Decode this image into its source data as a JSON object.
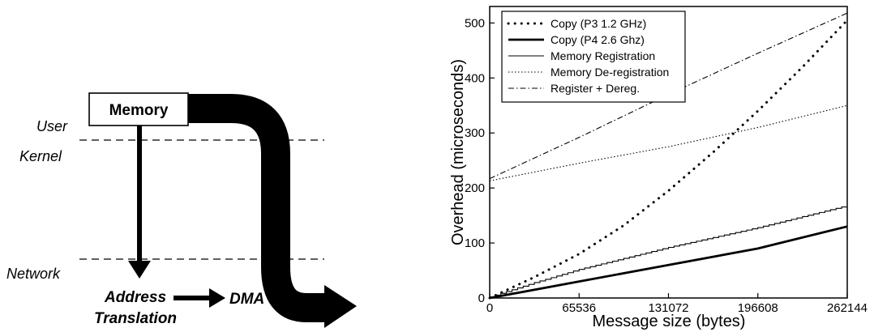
{
  "diagram": {
    "memory_label": "Memory",
    "user_label": "User",
    "kernel_label": "Kernel",
    "network_label": "Network",
    "address_label_line1": "Address",
    "address_label_line2": "Translation",
    "dma_label": "DMA"
  },
  "chart_data": {
    "type": "line",
    "xlabel": "Message size (bytes)",
    "ylabel": "Overhead (microseconds)",
    "xlim": [
      0,
      262144
    ],
    "ylim": [
      0,
      530
    ],
    "xticks": [
      0,
      65536,
      131072,
      196608,
      262144
    ],
    "xtick_labels": [
      "0",
      "65536",
      "131072",
      "196608",
      "262144"
    ],
    "yticks": [
      0,
      100,
      200,
      300,
      400,
      500
    ],
    "ytick_labels": [
      "0",
      "100",
      "200",
      "300",
      "400",
      "500"
    ],
    "legend_position": "top-left",
    "grid": false,
    "series": [
      {
        "name": "Copy (P3 1.2 GHz)",
        "style": "dotted-bold",
        "color": "#000000",
        "x": [
          0,
          32768,
          65536,
          98304,
          131072,
          163840,
          196608,
          229376,
          262144
        ],
        "y": [
          0,
          38,
          80,
          132,
          195,
          265,
          340,
          420,
          505
        ]
      },
      {
        "name": "Copy (P4 2.6 Ghz)",
        "style": "solid-bold",
        "color": "#000000",
        "x": [
          0,
          65536,
          131072,
          196608,
          262144
        ],
        "y": [
          0,
          30,
          60,
          90,
          130
        ]
      },
      {
        "name": "Memory Registration",
        "style": "solid-thin",
        "color": "#000000",
        "x": [
          0,
          32768,
          65536,
          98304,
          131072,
          163840,
          196608,
          229376,
          262144
        ],
        "y": [
          2,
          28,
          52,
          72,
          92,
          110,
          128,
          148,
          168
        ]
      },
      {
        "name": "Memory De-registration",
        "style": "dotted-thin",
        "color": "#000000",
        "x": [
          0,
          65536,
          131072,
          196608,
          262144
        ],
        "y": [
          213,
          245,
          275,
          310,
          350
        ]
      },
      {
        "name": "Register + Dereg.",
        "style": "dashdot",
        "color": "#000000",
        "x": [
          0,
          65536,
          131072,
          196608,
          262144
        ],
        "y": [
          217,
          292,
          370,
          445,
          518
        ]
      }
    ]
  }
}
